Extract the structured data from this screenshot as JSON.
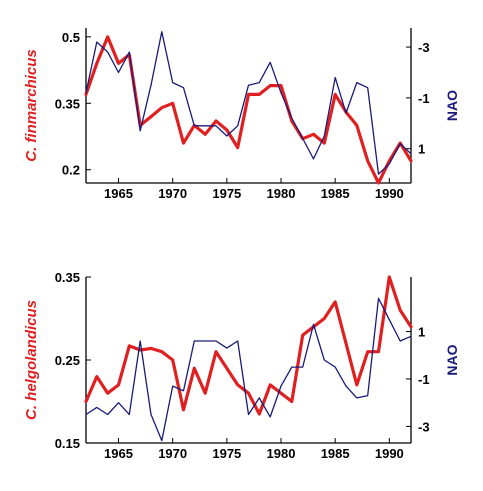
{
  "colors": {
    "species": "#e02020",
    "nao": "#1a1a7a",
    "axis": "#000000"
  },
  "chart_data": [
    {
      "type": "line",
      "title": "",
      "xlabel": "",
      "ylabel": "C. finmarchicus",
      "y2label": "NAO",
      "xlim": [
        1962,
        1992
      ],
      "ylim": [
        0.17,
        0.52
      ],
      "y2lim": [
        2.35,
        -3.75
      ],
      "y2_inverted": true,
      "xticks": [
        1965,
        1970,
        1975,
        1980,
        1985,
        1990
      ],
      "yticks": [
        0.5,
        0.35,
        0.2
      ],
      "y2ticks": [
        -3,
        -1,
        1
      ],
      "series": [
        {
          "axis": "left",
          "x": [
            1962,
            1963,
            1964,
            1965,
            1966,
            1967,
            1968,
            1969,
            1970,
            1971,
            1972,
            1973,
            1974,
            1975,
            1976,
            1977,
            1978,
            1979,
            1980,
            1981,
            1982,
            1983,
            1984,
            1985,
            1986,
            1987,
            1988,
            1989,
            1990,
            1991,
            1992
          ],
          "values": [
            0.37,
            0.44,
            0.5,
            0.44,
            0.46,
            0.3,
            0.32,
            0.34,
            0.35,
            0.26,
            0.3,
            0.28,
            0.31,
            0.29,
            0.25,
            0.37,
            0.37,
            0.39,
            0.39,
            0.31,
            0.27,
            0.28,
            0.26,
            0.37,
            0.33,
            0.3,
            0.22,
            0.17,
            0.22,
            0.26,
            0.22
          ]
        },
        {
          "axis": "right",
          "x": [
            1962,
            1963,
            1964,
            1965,
            1966,
            1967,
            1968,
            1969,
            1970,
            1971,
            1972,
            1973,
            1974,
            1975,
            1976,
            1977,
            1978,
            1979,
            1980,
            1981,
            1982,
            1983,
            1984,
            1985,
            1986,
            1987,
            1988,
            1989,
            1990,
            1991,
            1992
          ],
          "values": [
            -1.2,
            -3.2,
            -2.8,
            -2.0,
            -2.8,
            0.3,
            -1.5,
            -3.6,
            -1.6,
            -1.4,
            0.1,
            0.1,
            0.1,
            0.5,
            0.1,
            -1.5,
            -1.6,
            -2.4,
            -1.2,
            -0.2,
            0.6,
            1.4,
            0.5,
            -1.8,
            -0.4,
            -1.6,
            -1.4,
            2.0,
            1.6,
            0.8,
            1.2
          ]
        }
      ]
    },
    {
      "type": "line",
      "title": "",
      "xlabel": "",
      "ylabel": "C. helgolandicus",
      "y2label": "NAO",
      "xlim": [
        1962,
        1992
      ],
      "ylim": [
        0.15,
        0.35
      ],
      "y2lim": [
        -3.7,
        3.3
      ],
      "y2_inverted": false,
      "xticks": [
        1965,
        1970,
        1975,
        1980,
        1985,
        1990
      ],
      "yticks": [
        0.35,
        0.25,
        0.15
      ],
      "y2ticks": [
        1,
        -1,
        -3
      ],
      "series": [
        {
          "axis": "left",
          "x": [
            1962,
            1963,
            1964,
            1965,
            1966,
            1967,
            1968,
            1969,
            1970,
            1971,
            1972,
            1973,
            1974,
            1975,
            1976,
            1977,
            1978,
            1979,
            1980,
            1981,
            1982,
            1983,
            1984,
            1985,
            1986,
            1987,
            1988,
            1989,
            1990,
            1991,
            1992
          ],
          "values": [
            0.2,
            0.23,
            0.21,
            0.22,
            0.267,
            0.262,
            0.264,
            0.26,
            0.25,
            0.19,
            0.24,
            0.21,
            0.26,
            0.24,
            0.22,
            0.21,
            0.185,
            0.22,
            0.21,
            0.2,
            0.28,
            0.29,
            0.3,
            0.32,
            0.27,
            0.22,
            0.26,
            0.26,
            0.35,
            0.31,
            0.29
          ]
        },
        {
          "axis": "right",
          "x": [
            1962,
            1963,
            1964,
            1965,
            1966,
            1967,
            1968,
            1969,
            1970,
            1971,
            1972,
            1973,
            1974,
            1975,
            1976,
            1977,
            1978,
            1979,
            1980,
            1981,
            1982,
            1983,
            1984,
            1985,
            1986,
            1987,
            1988,
            1989,
            1990,
            1991,
            1992
          ],
          "values": [
            -2.5,
            -2.2,
            -2.5,
            -2.0,
            -2.5,
            0.6,
            -2.5,
            -3.6,
            -1.3,
            -1.5,
            0.6,
            0.6,
            0.6,
            0.3,
            0.6,
            -2.5,
            -1.8,
            -2.6,
            -1.3,
            -0.5,
            -0.5,
            1.3,
            -0.2,
            -0.5,
            -1.3,
            -1.8,
            -1.7,
            2.4,
            1.5,
            0.6,
            0.8
          ]
        }
      ]
    }
  ]
}
